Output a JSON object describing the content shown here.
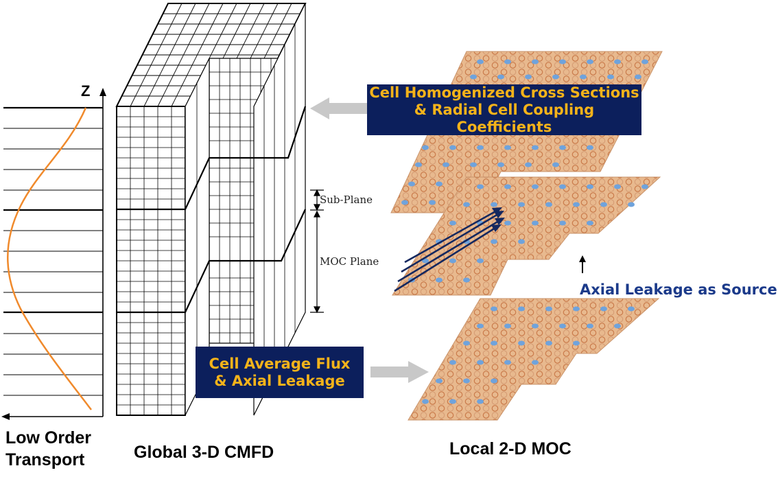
{
  "axis": {
    "z_label": "Z"
  },
  "captions": {
    "low_order_line1": "Low Order",
    "low_order_line2": "Transport",
    "global": "Global 3-D CMFD",
    "local": "Local 2-D MOC"
  },
  "boxes": {
    "homogenized_line1": "Cell Homogenized Cross Sections",
    "homogenized_line2": "& Radial Cell Coupling Coefficients",
    "flux_line1": "Cell Average Flux",
    "flux_line2": "& Axial Leakage"
  },
  "dimensions": {
    "sub_plane": "Sub-Plane",
    "moc_plane": "MOC Plane"
  },
  "axial_leakage": "Axial Leakage as Source",
  "colors": {
    "box_bg": "#0c1f5c",
    "box_text": "#f5b31a",
    "flux_curve": "#f08a2c",
    "plane_fill": "#e8b98e",
    "pin_blue": "#6fa3dc",
    "arrow_gray": "#c8c8c8",
    "ray_blue": "#14285f"
  }
}
